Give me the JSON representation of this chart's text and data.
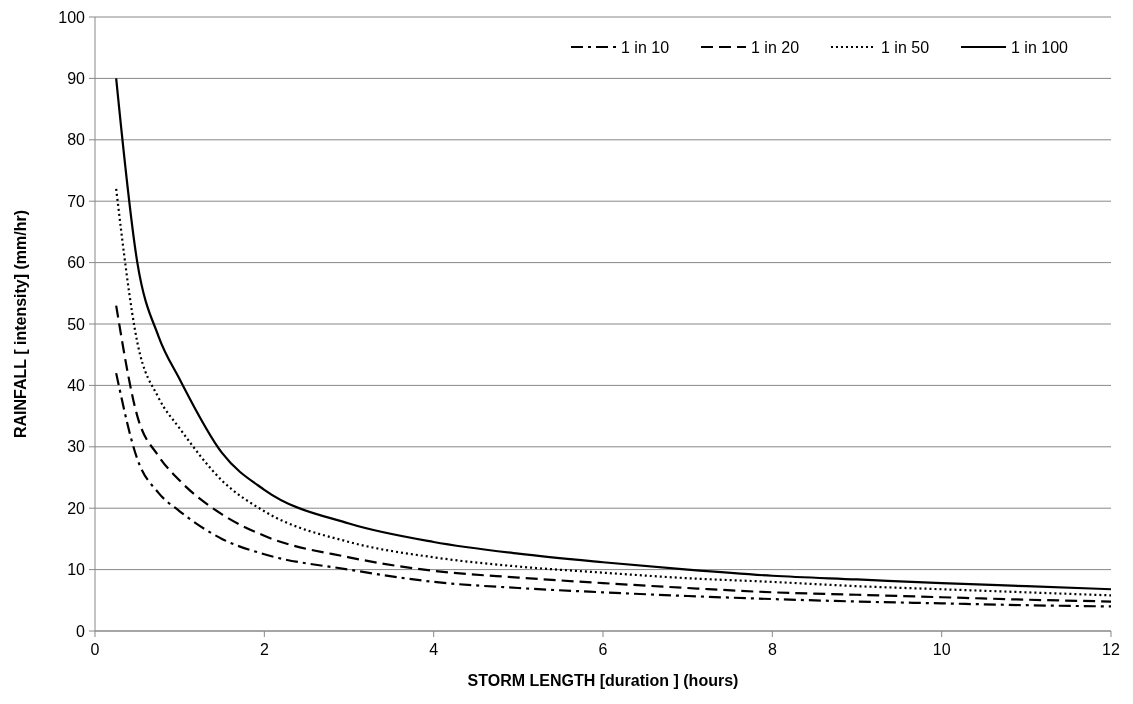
{
  "chart_data": {
    "type": "line",
    "xlabel": "STORM LENGTH [duration ] (hours)",
    "ylabel": "RAINFALL [ intensity] (mm/hr)",
    "x": [
      0.25,
      0.5,
      0.75,
      1,
      1.5,
      2,
      3,
      4,
      5,
      6,
      7,
      8,
      9,
      10,
      11,
      12
    ],
    "series": [
      {
        "name": "1 in 10",
        "color": "#000000",
        "line_style": "dashdot",
        "values": [
          42,
          28,
          22.5,
          19.5,
          15,
          12.5,
          10,
          8,
          7,
          6.3,
          5.7,
          5.2,
          4.8,
          4.5,
          4.2,
          4
        ]
      },
      {
        "name": "1 in 20",
        "color": "#000000",
        "line_style": "dashed",
        "values": [
          53,
          35,
          28.5,
          24.5,
          19,
          15.5,
          12,
          9.8,
          8.7,
          7.8,
          7,
          6.3,
          5.9,
          5.5,
          5.1,
          4.8
        ]
      },
      {
        "name": "1 in 50",
        "color": "#000000",
        "line_style": "dotted",
        "values": [
          72,
          47,
          38,
          33,
          24.5,
          19.5,
          14.5,
          12,
          10.5,
          9.5,
          8.6,
          8,
          7.3,
          6.8,
          6.3,
          5.8
        ]
      },
      {
        "name": "1 in 100",
        "color": "#000000",
        "line_style": "solid",
        "values": [
          90,
          60,
          48,
          41,
          29,
          23,
          17.5,
          14.5,
          12.6,
          11.2,
          10,
          9,
          8.4,
          7.8,
          7.3,
          6.8
        ]
      }
    ],
    "xlim": [
      0,
      12
    ],
    "xticks": [
      0,
      2,
      4,
      6,
      8,
      10,
      12
    ],
    "ylim": [
      0,
      100
    ],
    "yticks": [
      0,
      10,
      20,
      30,
      40,
      50,
      60,
      70,
      80,
      90,
      100
    ],
    "grid": "y",
    "legend": "top right"
  }
}
